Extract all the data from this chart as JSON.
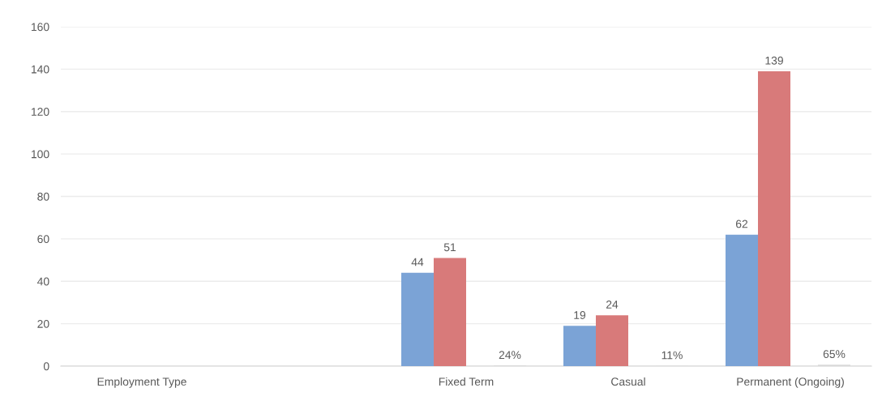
{
  "chart_data": {
    "type": "bar",
    "categories": [
      "Employment Type",
      null,
      "Fixed Term",
      "Casual",
      "Permanent (Ongoing)"
    ],
    "series": [
      {
        "color": "#7ba3d6",
        "values": [
          null,
          null,
          44,
          19,
          62
        ],
        "value_labels": [
          null,
          null,
          "44",
          "19",
          "62"
        ]
      },
      {
        "color": "#d87a7a",
        "values": [
          null,
          null,
          51,
          24,
          139
        ],
        "value_labels": [
          null,
          null,
          "51",
          "24",
          "139"
        ]
      },
      {
        "color": "#d9d9d9",
        "values": [
          null,
          null,
          0.24,
          0.11,
          0.65
        ],
        "value_labels": [
          null,
          null,
          "24%",
          "11%",
          "65%"
        ]
      }
    ],
    "ylim": [
      0,
      160
    ],
    "yticks": [
      0,
      20,
      40,
      60,
      80,
      100,
      120,
      140,
      160
    ],
    "grid": "y",
    "legend": false
  }
}
